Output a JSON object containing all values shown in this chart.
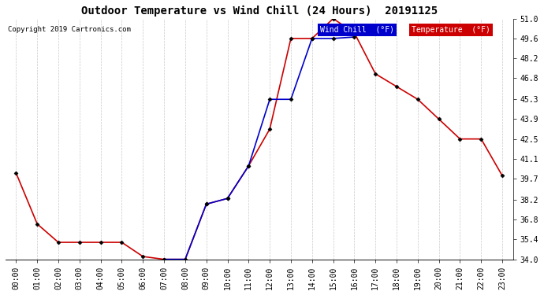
{
  "title": "Outdoor Temperature vs Wind Chill (24 Hours)  20191125",
  "copyright": "Copyright 2019 Cartronics.com",
  "x_labels": [
    "00:00",
    "01:00",
    "02:00",
    "03:00",
    "04:00",
    "05:00",
    "06:00",
    "07:00",
    "08:00",
    "09:00",
    "10:00",
    "11:00",
    "12:00",
    "13:00",
    "14:00",
    "15:00",
    "16:00",
    "17:00",
    "18:00",
    "19:00",
    "20:00",
    "21:00",
    "22:00",
    "23:00"
  ],
  "ylabel_right_ticks": [
    34.0,
    35.4,
    36.8,
    38.2,
    39.7,
    41.1,
    42.5,
    43.9,
    45.3,
    46.8,
    48.2,
    49.6,
    51.0
  ],
  "temperature": [
    40.1,
    36.5,
    35.2,
    35.2,
    35.2,
    35.2,
    34.2,
    34.0,
    34.0,
    37.9,
    38.3,
    40.6,
    43.2,
    49.6,
    49.6,
    51.0,
    50.0,
    47.1,
    46.2,
    45.3,
    43.9,
    42.5,
    42.5,
    39.9
  ],
  "wind_chill_segments": [
    {
      "x": [
        7,
        8,
        9,
        10,
        11,
        12,
        13,
        14,
        15,
        16
      ],
      "y": [
        34.0,
        34.0,
        37.9,
        38.3,
        40.6,
        45.3,
        45.3,
        49.6,
        49.6,
        49.7
      ]
    }
  ],
  "temp_color": "#cc0000",
  "wind_chill_color": "#0000cc",
  "background_color": "#ffffff",
  "grid_color": "#bbbbbb",
  "ylim": [
    34.0,
    51.0
  ],
  "marker": "D",
  "marker_size": 2.5,
  "line_width": 1.2,
  "title_fontsize": 10,
  "tick_fontsize": 7
}
